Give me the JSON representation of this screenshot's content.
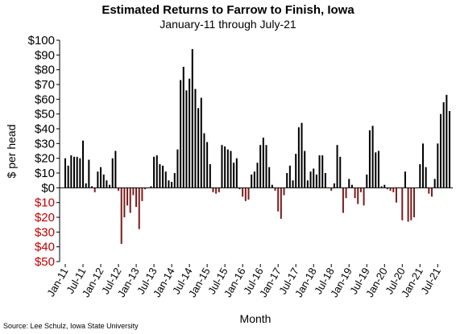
{
  "chart_data": {
    "type": "bar",
    "title": "Estimated Returns to Farrow to Finish, Iowa",
    "subtitle": "January-11 through July-21",
    "xlabel": "Month",
    "ylabel": "$ per head",
    "ylim": [
      -50,
      100
    ],
    "yticks": [
      {
        "v": 100,
        "label": "$100"
      },
      {
        "v": 90,
        "label": "$90"
      },
      {
        "v": 80,
        "label": "$80"
      },
      {
        "v": 70,
        "label": "$70"
      },
      {
        "v": 60,
        "label": "$60"
      },
      {
        "v": 50,
        "label": "$50"
      },
      {
        "v": 40,
        "label": "$40"
      },
      {
        "v": 30,
        "label": "$30"
      },
      {
        "v": 20,
        "label": "$20"
      },
      {
        "v": 10,
        "label": "$10"
      },
      {
        "v": 0,
        "label": "$0"
      },
      {
        "v": -10,
        "label": "$10"
      },
      {
        "v": -20,
        "label": "$20"
      },
      {
        "v": -30,
        "label": "$30"
      },
      {
        "v": -40,
        "label": "$40"
      },
      {
        "v": -50,
        "label": "$50"
      }
    ],
    "xticks": [
      {
        "i": 0,
        "label": "Jan-11"
      },
      {
        "i": 6,
        "label": "Jul-11"
      },
      {
        "i": 12,
        "label": "Jan-12"
      },
      {
        "i": 18,
        "label": "Jul-12"
      },
      {
        "i": 24,
        "label": "Jan-13"
      },
      {
        "i": 30,
        "label": "Jul-13"
      },
      {
        "i": 36,
        "label": "Jan-14"
      },
      {
        "i": 42,
        "label": "Jul-14"
      },
      {
        "i": 48,
        "label": "Jan-15"
      },
      {
        "i": 54,
        "label": "Jul-15"
      },
      {
        "i": 60,
        "label": "Jan-16"
      },
      {
        "i": 66,
        "label": "Jul-16"
      },
      {
        "i": 72,
        "label": "Jan-17"
      },
      {
        "i": 78,
        "label": "Jul-17"
      },
      {
        "i": 84,
        "label": "Jan-18"
      },
      {
        "i": 90,
        "label": "Jul-18"
      },
      {
        "i": 96,
        "label": "Jan-19"
      },
      {
        "i": 102,
        "label": "Jul-19"
      },
      {
        "i": 108,
        "label": "Jan-20"
      },
      {
        "i": 114,
        "label": "Jul-20"
      },
      {
        "i": 120,
        "label": "Jan-21"
      },
      {
        "i": 126,
        "label": "Jul-21"
      }
    ],
    "series": [
      {
        "values": [
          20,
          15,
          22,
          21,
          21,
          20,
          32,
          3,
          19,
          1,
          -3,
          11,
          14,
          9,
          5,
          2,
          20,
          25,
          -2,
          -38,
          -20,
          -12,
          -17,
          -5,
          -13,
          -28,
          -9,
          -1,
          0,
          1,
          21,
          22,
          16,
          15,
          11,
          5,
          4,
          10,
          26,
          73,
          82,
          66,
          74,
          94,
          67,
          54,
          61,
          37,
          31,
          16,
          -3,
          -4,
          -3,
          29,
          28,
          26,
          25,
          17,
          20,
          -1,
          -6,
          -9,
          -8,
          9,
          11,
          17,
          29,
          34,
          29,
          14,
          2,
          -2,
          -16,
          -21,
          -5,
          10,
          15,
          5,
          23,
          41,
          44,
          25,
          5,
          11,
          13,
          9,
          22,
          22,
          10,
          0,
          -2,
          3,
          29,
          21,
          -17,
          -7,
          6,
          2,
          -7,
          -11,
          -3,
          -12,
          9,
          39,
          42,
          24,
          25,
          1,
          2,
          -1,
          -2,
          -3,
          -10,
          0,
          -22,
          11,
          -23,
          -22,
          -20,
          0,
          16,
          30,
          14,
          -4,
          -6,
          6,
          30,
          50,
          58,
          63,
          52
        ]
      }
    ],
    "colors": {
      "positive": "#000000",
      "negative": "#7b1e1e",
      "negative_label": "#c00000"
    },
    "grid": false,
    "legend": "none"
  },
  "source": "Source: Lee Schulz, Iowa State University"
}
